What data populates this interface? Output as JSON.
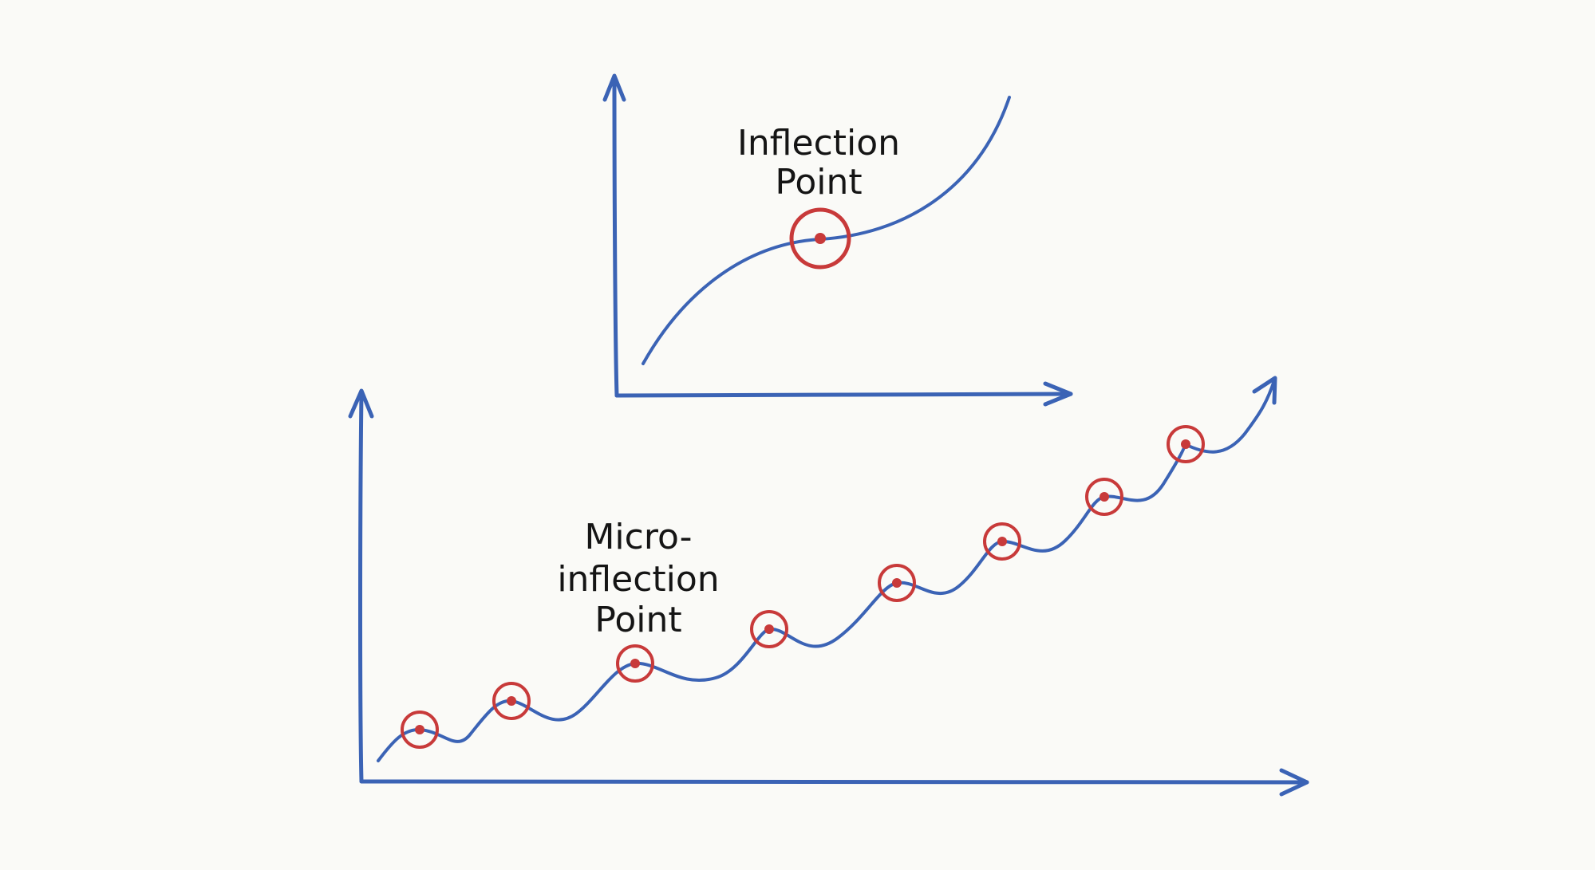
{
  "labels": {
    "top_line1": "Inflection",
    "top_line2": "Point",
    "bottom_line1": "Micro-",
    "bottom_line2": "inflection",
    "bottom_line3": "Point"
  },
  "colors": {
    "curve": "#3b63b5",
    "marker": "#c83a3a",
    "text": "#151515",
    "background": "#fafaf7"
  }
}
